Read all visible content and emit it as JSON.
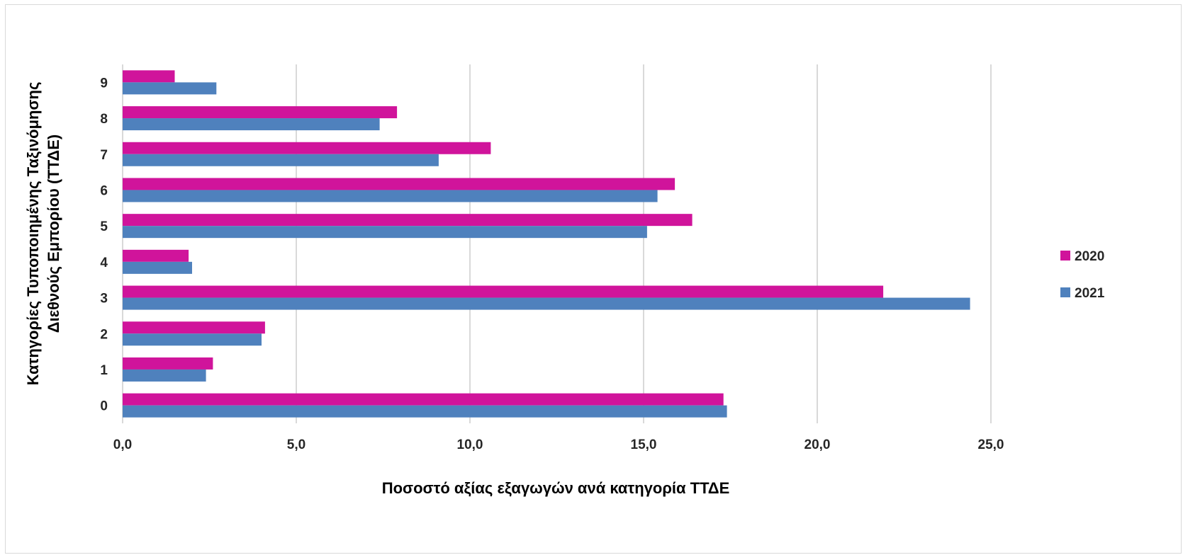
{
  "chart_data": {
    "type": "bar",
    "orientation": "horizontal",
    "categories": [
      "0",
      "1",
      "2",
      "3",
      "4",
      "5",
      "6",
      "7",
      "8",
      "9"
    ],
    "series": [
      {
        "name": "2020",
        "color": "#d0149b",
        "values": [
          17.3,
          2.6,
          4.1,
          21.9,
          1.9,
          16.4,
          15.9,
          10.6,
          7.9,
          1.5
        ]
      },
      {
        "name": "2021",
        "color": "#4f81bd",
        "values": [
          17.4,
          2.4,
          4.0,
          24.4,
          2.0,
          15.1,
          15.4,
          9.1,
          7.4,
          2.7
        ]
      }
    ],
    "xlabel": "Ποσοστό αξίας εξαγωγών ανά κατηγορία ΤΤΔΕ",
    "ylabel_lines": [
      "Κατηγορίες Τυποποιημένης Ταξινόμησης",
      "Διεθνούς Εμπορίου (ΤΤΔΕ)"
    ],
    "xlim": [
      0,
      28
    ],
    "xticks": [
      0,
      5,
      10,
      15,
      20,
      25
    ],
    "xtick_labels": [
      "0,0",
      "5,0",
      "10,0",
      "15,0",
      "20,0",
      "25,0"
    ],
    "grid": true,
    "gridline_color": "#d9d9d9",
    "legend_position": "right"
  }
}
